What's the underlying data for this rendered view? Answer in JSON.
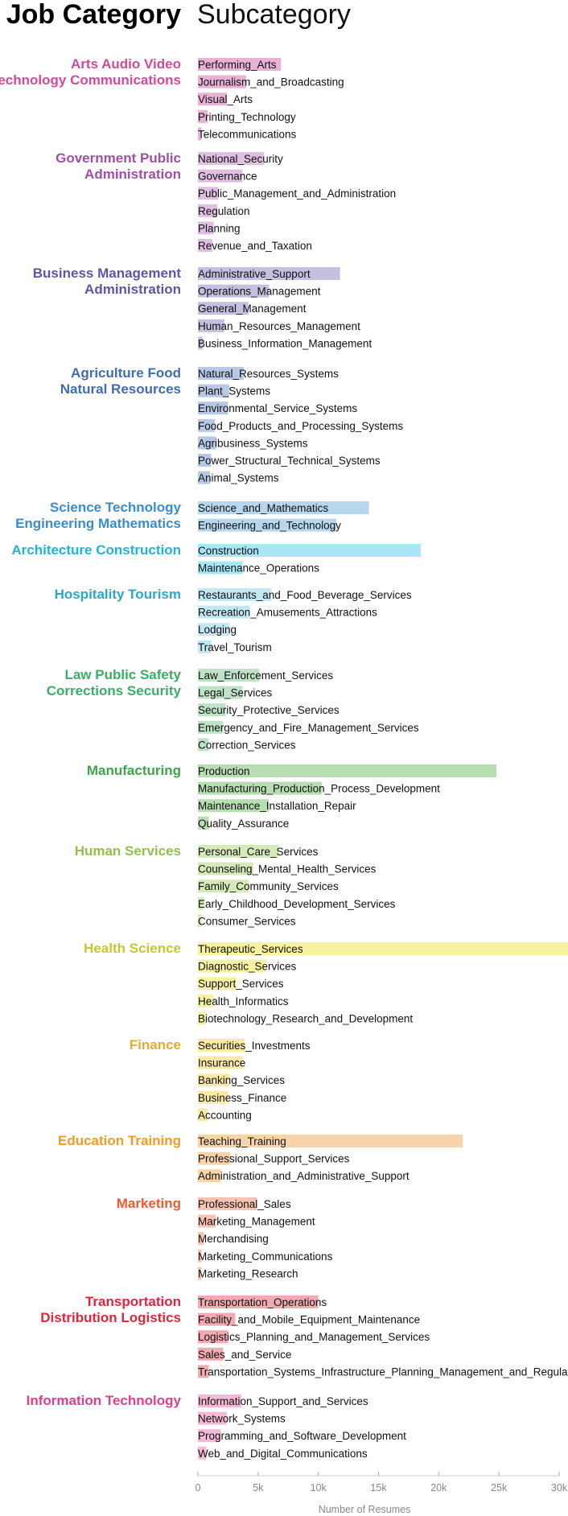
{
  "headers": {
    "category": "Job Category",
    "subcategory": "Subcategory"
  },
  "chart_data": {
    "type": "bar",
    "orientation": "horizontal",
    "xlabel": "Number of Resumes",
    "xlim": [
      0,
      30000
    ],
    "xticks": [
      {
        "value": 0,
        "label": "0"
      },
      {
        "value": 5000,
        "label": "5k"
      },
      {
        "value": 10000,
        "label": "10k"
      },
      {
        "value": 15000,
        "label": "15k"
      },
      {
        "value": 20000,
        "label": "20k"
      },
      {
        "value": 25000,
        "label": "25k"
      },
      {
        "value": 30000,
        "label": "30k"
      }
    ],
    "categories": [
      {
        "name": [
          "Arts Audio Video",
          "Technology Communications"
        ],
        "label_color": "#d6489a",
        "bar_color": "#e8b2d6",
        "subcategories": [
          {
            "name": "Performing_Arts",
            "value": 6900
          },
          {
            "name": "Journalism_and_Broadcasting",
            "value": 4000
          },
          {
            "name": "Visual_Arts",
            "value": 2400
          },
          {
            "name": "Printing_Technology",
            "value": 800
          },
          {
            "name": "Telecommunications",
            "value": 300
          }
        ]
      },
      {
        "name": [
          "Government Public",
          "Administration"
        ],
        "label_color": "#a14fa6",
        "bar_color": "#dfbfe2",
        "subcategories": [
          {
            "name": "National_Security",
            "value": 5500
          },
          {
            "name": "Governance",
            "value": 3700
          },
          {
            "name": "Public_Management_and_Administration",
            "value": 1700
          },
          {
            "name": "Regulation",
            "value": 1600
          },
          {
            "name": "Planning",
            "value": 1300
          },
          {
            "name": "Revenue_and_Taxation",
            "value": 1200
          }
        ]
      },
      {
        "name": [
          "Business Management",
          "Administration"
        ],
        "label_color": "#5e55a9",
        "bar_color": "#c4c0e0",
        "subcategories": [
          {
            "name": "Administrative_Support",
            "value": 11800
          },
          {
            "name": "Operations_Management",
            "value": 5900
          },
          {
            "name": "General_Management",
            "value": 4200
          },
          {
            "name": "Human_Resources_Management",
            "value": 2200
          },
          {
            "name": "Business_Information_Management",
            "value": 400
          }
        ]
      },
      {
        "name": [
          "Agriculture Food",
          "Natural Resources"
        ],
        "label_color": "#3f6db3",
        "bar_color": "#b8c9e6",
        "subcategories": [
          {
            "name": "Natural_Resources_Systems",
            "value": 3800
          },
          {
            "name": "Plant_Systems",
            "value": 2600
          },
          {
            "name": "Environmental_Service_Systems",
            "value": 2500
          },
          {
            "name": "Food_Products_and_Processing_Systems",
            "value": 1400
          },
          {
            "name": "Agribusiness_Systems",
            "value": 1500
          },
          {
            "name": "Power_Structural_Technical_Systems",
            "value": 1100
          },
          {
            "name": "Animal_Systems",
            "value": 1000
          }
        ]
      },
      {
        "name": [
          "Science Technology",
          "Engineering Mathematics"
        ],
        "label_color": "#3a8ccc",
        "bar_color": "#b6d7ee",
        "subcategories": [
          {
            "name": "Science_and_Mathematics",
            "value": 14200
          },
          {
            "name": "Engineering_and_Technology",
            "value": 11500
          }
        ]
      },
      {
        "name": [
          "Architecture Construction"
        ],
        "label_color": "#22b2d8",
        "bar_color": "#a8e6f5",
        "subcategories": [
          {
            "name": "Construction",
            "value": 18500
          },
          {
            "name": "Maintenance_Operations",
            "value": 3700
          }
        ]
      },
      {
        "name": [
          "Hospitality Tourism"
        ],
        "label_color": "#2aa8c9",
        "bar_color": "#c2e9f3",
        "subcategories": [
          {
            "name": "Restaurants_and_Food_Beverage_Services",
            "value": 6100
          },
          {
            "name": "Recreation_Amusements_Attractions",
            "value": 4300
          },
          {
            "name": "Lodging",
            "value": 2600
          },
          {
            "name": "Travel_Tourism",
            "value": 1100
          }
        ]
      },
      {
        "name": [
          "Law Public Safety",
          "Corrections Security"
        ],
        "label_color": "#3bae66",
        "bar_color": "#bfe3c9",
        "subcategories": [
          {
            "name": "Law_Enforcement_Services",
            "value": 5100
          },
          {
            "name": "Legal_Services",
            "value": 3700
          },
          {
            "name": "Security_Protective_Services",
            "value": 2300
          },
          {
            "name": "Emergency_and_Fire_Management_Services",
            "value": 2100
          },
          {
            "name": "Correction_Services",
            "value": 900
          }
        ]
      },
      {
        "name": [
          "Manufacturing"
        ],
        "label_color": "#3ea34a",
        "bar_color": "#b8ddb2",
        "subcategories": [
          {
            "name": "Production",
            "value": 24800
          },
          {
            "name": "Manufacturing_Production_Process_Development",
            "value": 10300
          },
          {
            "name": "Maintenance_Installation_Repair",
            "value": 5900
          },
          {
            "name": "Quality_Assurance",
            "value": 900
          }
        ]
      },
      {
        "name": [
          "Human Services"
        ],
        "label_color": "#8ec24a",
        "bar_color": "#d5eab8",
        "subcategories": [
          {
            "name": "Personal_Care_Services",
            "value": 6700
          },
          {
            "name": "Counseling_Mental_Health_Services",
            "value": 4600
          },
          {
            "name": "Family_Community_Services",
            "value": 4200
          },
          {
            "name": "Early_Childhood_Development_Services",
            "value": 500
          },
          {
            "name": "Consumer_Services",
            "value": 300
          }
        ]
      },
      {
        "name": [
          "Health Science"
        ],
        "label_color": "#c8c72e",
        "bar_color": "#f7f2a0",
        "subcategories": [
          {
            "name": "Therapeutic_Services",
            "value": 30800
          },
          {
            "name": "Diagnostic_Services",
            "value": 5600
          },
          {
            "name": "Support_Services",
            "value": 3200
          },
          {
            "name": "Health_Informatics",
            "value": 1300
          },
          {
            "name": "Biotechnology_Research_and_Development",
            "value": 700
          }
        ]
      },
      {
        "name": [
          "Finance"
        ],
        "label_color": "#e3ac2c",
        "bar_color": "#faeaa6",
        "subcategories": [
          {
            "name": "Securities_Investments",
            "value": 3900
          },
          {
            "name": "Insurance",
            "value": 3700
          },
          {
            "name": "Banking_Services",
            "value": 2600
          },
          {
            "name": "Business_Finance",
            "value": 2500
          },
          {
            "name": "Accounting",
            "value": 800
          }
        ]
      },
      {
        "name": [
          "Education Training"
        ],
        "label_color": "#f29a2b",
        "bar_color": "#f9d3a9",
        "subcategories": [
          {
            "name": "Teaching_Training",
            "value": 22000
          },
          {
            "name": "Professional_Support_Services",
            "value": 2700
          },
          {
            "name": "Administration_and_Administrative_Support",
            "value": 1900
          }
        ]
      },
      {
        "name": [
          "Marketing"
        ],
        "label_color": "#ef5a2f",
        "bar_color": "#f7c4b4",
        "subcategories": [
          {
            "name": "Professional_Sales",
            "value": 4900
          },
          {
            "name": "Marketing_Management",
            "value": 1500
          },
          {
            "name": "Merchandising",
            "value": 500
          },
          {
            "name": "Marketing_Communications",
            "value": 300
          },
          {
            "name": "Marketing_Research",
            "value": 300
          }
        ]
      },
      {
        "name": [
          "Transportation",
          "Distribution Logistics"
        ],
        "label_color": "#e3243a",
        "bar_color": "#f2aab2",
        "subcategories": [
          {
            "name": "Transportation_Operations",
            "value": 10000
          },
          {
            "name": "Facility_and_Mobile_Equipment_Maintenance",
            "value": 3100
          },
          {
            "name": "Logistics_Planning_and_Management_Services",
            "value": 2500
          },
          {
            "name": "Sales_and_Service",
            "value": 2100
          },
          {
            "name": "Transportation_Systems_Infrastructure_Planning_Management_and_Regulation",
            "value": 900
          }
        ]
      },
      {
        "name": [
          "Information Technology"
        ],
        "label_color": "#e23c8e",
        "bar_color": "#f5b9d7",
        "subcategories": [
          {
            "name": "Information_Support_and_Services",
            "value": 3600
          },
          {
            "name": "Network_Systems",
            "value": 2400
          },
          {
            "name": "Programming_and_Software_Development",
            "value": 1900
          },
          {
            "name": "Web_and_Digital_Communications",
            "value": 700
          }
        ]
      }
    ]
  }
}
